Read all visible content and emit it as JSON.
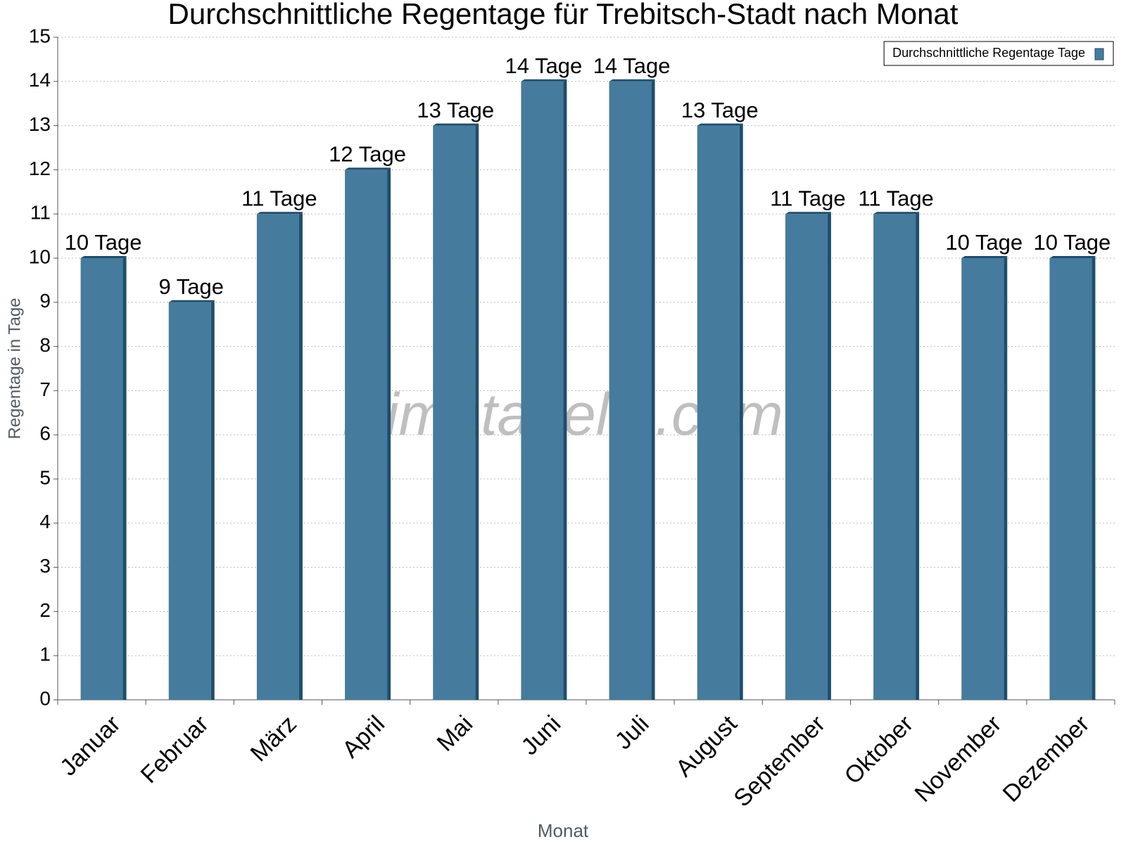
{
  "chart_data": {
    "type": "bar",
    "title": "Durchschnittliche Regentage für Trebitsch-Stadt nach Monat",
    "xlabel": "Monat",
    "ylabel": "Regentage in Tage",
    "watermark": "klimatabelle.com",
    "categories": [
      "Januar",
      "Februar",
      "März",
      "April",
      "Mai",
      "Juni",
      "Juli",
      "August",
      "September",
      "Oktober",
      "November",
      "Dezember"
    ],
    "series": [
      {
        "name": "Durchschnittliche Regentage Tage",
        "color": "#457b9d",
        "values": [
          10,
          9,
          11,
          12,
          13,
          14,
          14,
          13,
          11,
          11,
          10,
          10
        ],
        "value_labels": [
          "10 Tage",
          "9 Tage",
          "11 Tage",
          "12 Tage",
          "13 Tage",
          "14 Tage",
          "14 Tage",
          "13 Tage",
          "11 Tage",
          "11 Tage",
          "10 Tage",
          "10 Tage"
        ]
      }
    ],
    "ylim": [
      0,
      15
    ],
    "yticks": [
      0,
      1,
      2,
      3,
      4,
      5,
      6,
      7,
      8,
      9,
      10,
      11,
      12,
      13,
      14,
      15
    ],
    "grid": true,
    "legend": "upper right"
  }
}
